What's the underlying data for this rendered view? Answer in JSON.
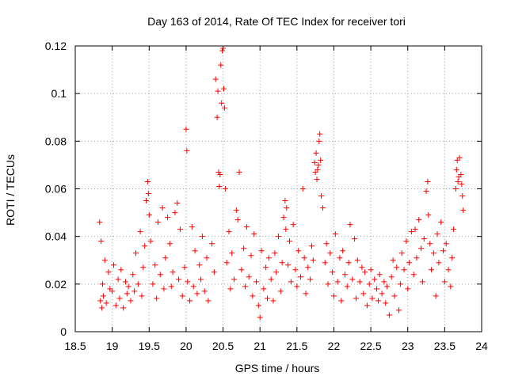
{
  "chart_data": {
    "type": "scatter",
    "title": "Day 163 of 2014, Rate Of TEC Index for receiver tori",
    "xlabel": "GPS time / hours",
    "ylabel": "ROTI / TECUs",
    "xlim": [
      18.5,
      24
    ],
    "ylim": [
      0,
      0.12
    ],
    "grid": true,
    "marker": "+",
    "color": "#ff0000",
    "x_ticks": [
      18.5,
      19,
      19.5,
      20,
      20.5,
      21,
      21.5,
      22,
      22.5,
      23,
      23.5,
      24
    ],
    "x_tick_labels": [
      "18.5",
      "19",
      "19.5",
      "20",
      "20.5",
      "21",
      "21.5",
      "22",
      "22.5",
      "23",
      "23.5",
      "24"
    ],
    "y_ticks": [
      0,
      0.02,
      0.04,
      0.06,
      0.08,
      0.1,
      0.12
    ],
    "y_tick_labels": [
      "0",
      "0.02",
      "0.04",
      "0.06",
      "0.08",
      "0.1",
      "0.12"
    ],
    "series": [
      {
        "name": "ROTI",
        "x": [
          18.83,
          18.84,
          18.85,
          18.86,
          18.87,
          18.88,
          18.9,
          18.92,
          18.95,
          18.97,
          19.0,
          19.02,
          19.05,
          19.08,
          19.1,
          19.12,
          19.15,
          19.18,
          19.2,
          19.22,
          19.25,
          19.28,
          19.3,
          19.32,
          19.35,
          19.38,
          19.4,
          19.42,
          19.44,
          19.46,
          19.48,
          19.49,
          19.5,
          19.52,
          19.55,
          19.58,
          19.6,
          19.62,
          19.65,
          19.68,
          19.7,
          19.72,
          19.75,
          19.78,
          19.8,
          19.82,
          19.85,
          19.88,
          19.9,
          19.92,
          19.95,
          19.98,
          20.0,
          20.01,
          20.02,
          20.05,
          20.08,
          20.1,
          20.12,
          20.15,
          20.18,
          20.2,
          20.22,
          20.25,
          20.28,
          20.3,
          20.35,
          20.38,
          20.4,
          20.42,
          20.43,
          20.44,
          20.45,
          20.46,
          20.47,
          20.48,
          20.49,
          20.5,
          20.51,
          20.52,
          20.53,
          20.55,
          20.58,
          20.6,
          20.62,
          20.65,
          20.68,
          20.7,
          20.72,
          20.75,
          20.78,
          20.8,
          20.82,
          20.85,
          20.88,
          20.9,
          20.92,
          20.95,
          20.98,
          21.0,
          21.02,
          21.05,
          21.08,
          21.1,
          21.12,
          21.15,
          21.18,
          21.2,
          21.22,
          21.25,
          21.28,
          21.3,
          21.32,
          21.34,
          21.35,
          21.36,
          21.38,
          21.4,
          21.42,
          21.45,
          21.48,
          21.5,
          21.52,
          21.55,
          21.58,
          21.6,
          21.62,
          21.65,
          21.68,
          21.7,
          21.72,
          21.74,
          21.75,
          21.76,
          21.77,
          21.78,
          21.79,
          21.8,
          21.81,
          21.82,
          21.83,
          21.85,
          21.88,
          21.9,
          21.92,
          21.95,
          21.98,
          22.0,
          22.02,
          22.05,
          22.08,
          22.1,
          22.12,
          22.15,
          22.18,
          22.2,
          22.22,
          22.25,
          22.28,
          22.3,
          22.32,
          22.35,
          22.38,
          22.4,
          22.42,
          22.45,
          22.48,
          22.5,
          22.52,
          22.55,
          22.58,
          22.6,
          22.62,
          22.65,
          22.68,
          22.7,
          22.72,
          22.75,
          22.78,
          22.8,
          22.82,
          22.85,
          22.88,
          22.9,
          22.92,
          22.95,
          22.98,
          23.0,
          23.02,
          23.05,
          23.08,
          23.1,
          23.12,
          23.15,
          23.18,
          23.2,
          23.22,
          23.25,
          23.27,
          23.28,
          23.3,
          23.32,
          23.35,
          23.38,
          23.4,
          23.42,
          23.45,
          23.48,
          23.5,
          23.52,
          23.55,
          23.58,
          23.6,
          23.62,
          23.65,
          23.66,
          23.67,
          23.68,
          23.69,
          23.7,
          23.72,
          23.73,
          23.74,
          23.75
        ],
        "y": [
          0.046,
          0.013,
          0.038,
          0.01,
          0.02,
          0.015,
          0.03,
          0.012,
          0.025,
          0.018,
          0.017,
          0.028,
          0.011,
          0.022,
          0.014,
          0.026,
          0.01,
          0.021,
          0.016,
          0.019,
          0.013,
          0.024,
          0.017,
          0.033,
          0.02,
          0.042,
          0.015,
          0.027,
          0.036,
          0.055,
          0.063,
          0.058,
          0.049,
          0.038,
          0.02,
          0.028,
          0.014,
          0.046,
          0.024,
          0.052,
          0.018,
          0.031,
          0.048,
          0.037,
          0.019,
          0.025,
          0.05,
          0.054,
          0.022,
          0.043,
          0.015,
          0.027,
          0.085,
          0.076,
          0.021,
          0.013,
          0.044,
          0.019,
          0.034,
          0.016,
          0.028,
          0.022,
          0.04,
          0.017,
          0.031,
          0.013,
          0.037,
          0.025,
          0.106,
          0.09,
          0.101,
          0.067,
          0.061,
          0.066,
          0.112,
          0.096,
          0.118,
          0.119,
          0.102,
          0.094,
          0.06,
          0.029,
          0.042,
          0.018,
          0.033,
          0.022,
          0.051,
          0.047,
          0.067,
          0.026,
          0.035,
          0.019,
          0.044,
          0.023,
          0.032,
          0.015,
          0.041,
          0.021,
          0.011,
          0.006,
          0.034,
          0.018,
          0.027,
          0.014,
          0.031,
          0.022,
          0.013,
          0.033,
          0.025,
          0.04,
          0.017,
          0.029,
          0.048,
          0.055,
          0.043,
          0.052,
          0.028,
          0.038,
          0.021,
          0.045,
          0.026,
          0.019,
          0.034,
          0.023,
          0.06,
          0.031,
          0.016,
          0.027,
          0.022,
          0.036,
          0.03,
          0.071,
          0.067,
          0.075,
          0.064,
          0.068,
          0.07,
          0.08,
          0.083,
          0.072,
          0.057,
          0.052,
          0.029,
          0.037,
          0.02,
          0.033,
          0.025,
          0.015,
          0.041,
          0.021,
          0.031,
          0.013,
          0.034,
          0.024,
          0.019,
          0.029,
          0.045,
          0.022,
          0.039,
          0.014,
          0.03,
          0.021,
          0.027,
          0.016,
          0.025,
          0.011,
          0.02,
          0.026,
          0.014,
          0.022,
          0.018,
          0.013,
          0.024,
          0.016,
          0.021,
          0.012,
          0.019,
          0.007,
          0.023,
          0.03,
          0.015,
          0.027,
          0.009,
          0.02,
          0.033,
          0.026,
          0.038,
          0.018,
          0.029,
          0.042,
          0.024,
          0.043,
          0.031,
          0.047,
          0.035,
          0.021,
          0.039,
          0.059,
          0.063,
          0.049,
          0.037,
          0.026,
          0.033,
          0.015,
          0.041,
          0.029,
          0.046,
          0.034,
          0.021,
          0.037,
          0.026,
          0.019,
          0.031,
          0.043,
          0.06,
          0.068,
          0.072,
          0.063,
          0.065,
          0.073,
          0.066,
          0.062,
          0.057,
          0.051
        ]
      }
    ]
  }
}
